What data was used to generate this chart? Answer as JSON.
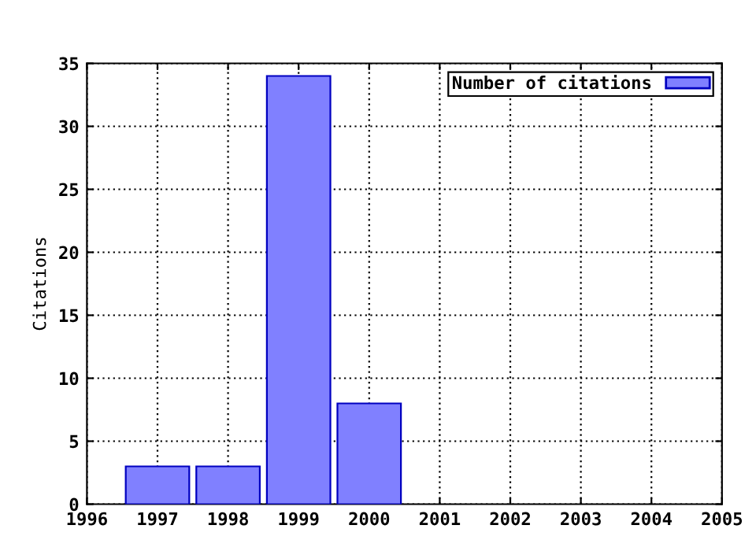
{
  "chart_data": {
    "type": "bar",
    "ylabel": "Citations",
    "x": [
      1997,
      1998,
      1999,
      2000
    ],
    "series": [
      {
        "name": "Number of citations",
        "color": "#8080ff",
        "values": [
          3,
          3,
          34,
          8
        ]
      }
    ],
    "xlim": [
      1996,
      2005
    ],
    "xticks": [
      1996,
      1997,
      1998,
      1999,
      2000,
      2001,
      2002,
      2003,
      2004,
      2005
    ],
    "ylim": [
      0,
      35
    ],
    "yticks": [
      0,
      5,
      10,
      15,
      20,
      25,
      30,
      35
    ],
    "grid": true,
    "legend": "top right"
  }
}
